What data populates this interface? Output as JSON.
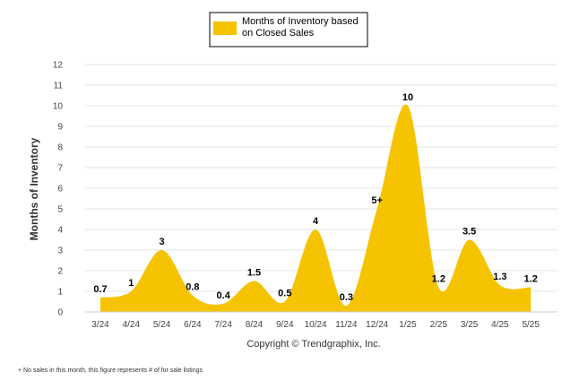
{
  "chart_data": {
    "type": "area",
    "categories": [
      "3/24",
      "4/24",
      "5/24",
      "6/24",
      "7/24",
      "8/24",
      "9/24",
      "10/24",
      "11/24",
      "12/24",
      "1/25",
      "2/25",
      "3/25",
      "4/25",
      "5/25"
    ],
    "series": [
      {
        "name": "Months of Inventory based on Closed Sales",
        "values": [
          0.7,
          1,
          3,
          0.8,
          0.4,
          1.5,
          0.5,
          4,
          0.3,
          5,
          10,
          1.2,
          3.5,
          1.3,
          1.2
        ],
        "labels": [
          "0.7",
          "1",
          "3",
          "0.8",
          "0.4",
          "1.5",
          "0.5",
          "4",
          "0.3",
          "5+",
          "10",
          "1.2",
          "3.5",
          "1.3",
          "1.2"
        ],
        "color": "#F5C300"
      }
    ],
    "ylabel": "Months of Inventory",
    "xlabel": "",
    "ylim": [
      0,
      12
    ],
    "yticks": [
      "0",
      "1",
      "2",
      "3",
      "4",
      "5",
      "6",
      "7",
      "8",
      "9",
      "10",
      "11",
      "12"
    ],
    "grid": true,
    "legend_position": "top-center"
  },
  "legend": {
    "line1": "Months of Inventory based",
    "line2": "on Closed Sales"
  },
  "copyright": "Copyright © Trendgraphix, Inc.",
  "footnote": "+ No sales in this month, this figure represents # of for sale listings"
}
